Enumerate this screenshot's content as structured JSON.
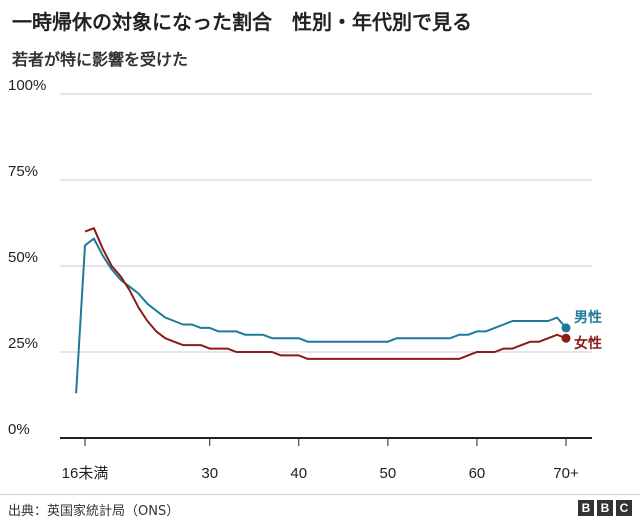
{
  "title": "一時帰休の対象になった割合　性別・年代別で見る",
  "subtitle": "若者が特に影響を受けた",
  "source": "出典：英国家統計局（ONS）",
  "logo": [
    "B",
    "B",
    "C"
  ],
  "colors": {
    "male": "#1d7a99",
    "female": "#8b1a1a",
    "grid": "#cccccc",
    "axis": "#222222"
  },
  "chart_data": {
    "type": "line",
    "title": "一時帰休の対象になった割合　性別・年代別で見る",
    "xlabel": "",
    "ylabel": "",
    "ylim": [
      0,
      100
    ],
    "xlim": [
      16,
      70
    ],
    "y_ticks": [
      0,
      25,
      50,
      75,
      100
    ],
    "y_tick_labels": [
      "0%",
      "25%",
      "50%",
      "75%",
      "100%"
    ],
    "x_ticks": [
      16,
      30,
      40,
      50,
      60,
      70
    ],
    "x_tick_labels": [
      "16未満",
      "30",
      "40",
      "50",
      "60",
      "70+"
    ],
    "grid": true,
    "series": [
      {
        "name": "男性",
        "key": "male",
        "x": [
          15,
          16,
          17,
          18,
          19,
          20,
          21,
          22,
          23,
          24,
          25,
          26,
          27,
          28,
          29,
          30,
          31,
          32,
          33,
          34,
          35,
          36,
          37,
          38,
          39,
          40,
          41,
          42,
          43,
          44,
          45,
          46,
          47,
          48,
          49,
          50,
          51,
          52,
          53,
          54,
          55,
          56,
          57,
          58,
          59,
          60,
          61,
          62,
          63,
          64,
          65,
          66,
          67,
          68,
          69,
          70
        ],
        "values": [
          13,
          56,
          58,
          53,
          49,
          46,
          44,
          42,
          39,
          37,
          35,
          34,
          33,
          33,
          32,
          32,
          31,
          31,
          31,
          30,
          30,
          30,
          29,
          29,
          29,
          29,
          28,
          28,
          28,
          28,
          28,
          28,
          28,
          28,
          28,
          28,
          29,
          29,
          29,
          29,
          29,
          29,
          29,
          30,
          30,
          31,
          31,
          32,
          33,
          34,
          34,
          34,
          34,
          34,
          35,
          32
        ]
      },
      {
        "name": "女性",
        "key": "female",
        "x": [
          16,
          17,
          18,
          19,
          20,
          21,
          22,
          23,
          24,
          25,
          26,
          27,
          28,
          29,
          30,
          31,
          32,
          33,
          34,
          35,
          36,
          37,
          38,
          39,
          40,
          41,
          42,
          43,
          44,
          45,
          46,
          47,
          48,
          49,
          50,
          51,
          52,
          53,
          54,
          55,
          56,
          57,
          58,
          59,
          60,
          61,
          62,
          63,
          64,
          65,
          66,
          67,
          68,
          69,
          70
        ],
        "values": [
          60,
          61,
          55,
          50,
          47,
          43,
          38,
          34,
          31,
          29,
          28,
          27,
          27,
          27,
          26,
          26,
          26,
          25,
          25,
          25,
          25,
          25,
          24,
          24,
          24,
          23,
          23,
          23,
          23,
          23,
          23,
          23,
          23,
          23,
          23,
          23,
          23,
          23,
          23,
          23,
          23,
          23,
          23,
          24,
          25,
          25,
          25,
          26,
          26,
          27,
          28,
          28,
          29,
          30,
          29
        ]
      }
    ]
  }
}
